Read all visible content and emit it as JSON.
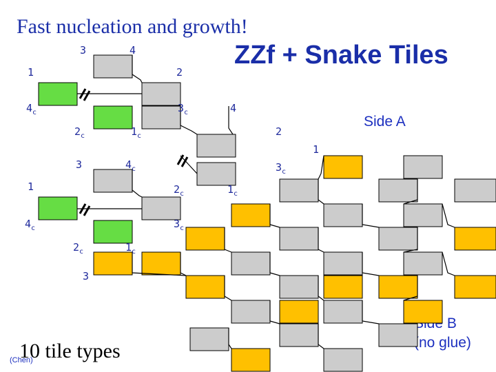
{
  "title": "Fast nucleation and growth!",
  "subtitle": "ZZf + Snake Tiles",
  "side_a": "Side A",
  "side_b_line1": "Side B",
  "side_b_line2": "(no glue)",
  "footer_main": "10 tile types",
  "footer_credit": "(Chen)",
  "labels": {
    "l3a": "3",
    "l4a": "4",
    "l1a": "1",
    "l2a": "2",
    "l4c_a": "4",
    "l3c_a": "3",
    "l4b": "4",
    "l2c_a": "2",
    "l1c_a": "1",
    "l2b": "2",
    "l1b": "1",
    "l3b": "3",
    "l4c_b": "4",
    "l3c_b": "3",
    "l1c": "1",
    "l2c_b": "2",
    "l1c_b": "1",
    "l4c_c": "4",
    "l3c_c": "3",
    "l2c_c": "2",
    "l1c_c": "1",
    "l3d": "3"
  },
  "sub": "c",
  "colors": {
    "gray": "#cccccc",
    "green": "#66dd44",
    "orange": "#ffc000",
    "label_blue": "#1f2a9c",
    "side_blue": "#1c2fbf"
  }
}
